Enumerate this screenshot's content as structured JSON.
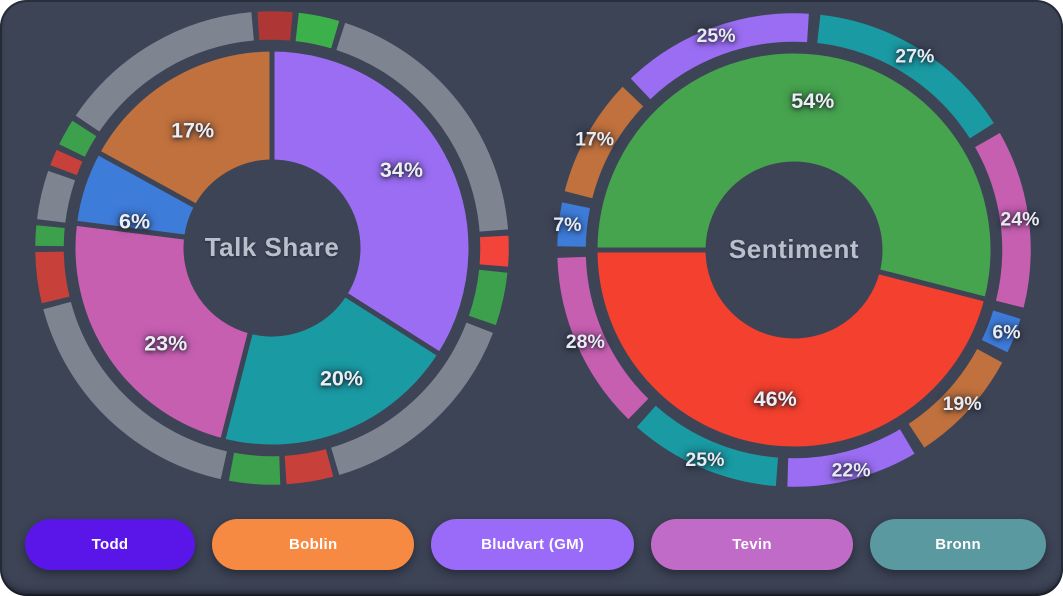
{
  "card": {
    "background": "#3d4456"
  },
  "colors": {
    "background": "#3d4456",
    "purple": "#9b6df3",
    "teal": "#1a9aa3",
    "magenta": "#c75fb1",
    "blue": "#3e7cd9",
    "orange": "#c0713d",
    "green": "#46a34e",
    "red": "#f4402e",
    "ring_gray": "#7e8591",
    "ring_green": "#3da04c",
    "ring_green_bright": "#3cb04a",
    "ring_red": "#c8403a",
    "ring_red_bright": "#f2443a",
    "ring_red_dark": "#ae3736",
    "label": "#eceef3",
    "title": "#b9c0cb"
  },
  "chart_data": [
    {
      "type": "pie",
      "title": "Talk Share",
      "unit": "%",
      "start_angle_deg": 0,
      "slices": [
        {
          "label": "34%",
          "value": 34,
          "color": "purple",
          "label_deg": 59,
          "label_r": 151
        },
        {
          "label": "20%",
          "value": 20,
          "color": "teal",
          "label_deg": 152,
          "label_r": 148
        },
        {
          "label": "23%",
          "value": 23,
          "color": "magenta",
          "label_deg": 228,
          "label_r": 143
        },
        {
          "label": "6%",
          "value": 6,
          "color": "blue",
          "label_deg": 281,
          "label_r": 140
        },
        {
          "label": "17%",
          "value": 17,
          "color": "orange",
          "label_deg": 326,
          "label_r": 142
        }
      ],
      "outer_ring": {
        "gap_deg": 0,
        "segments": [
          {
            "color": "ring_gray",
            "start": 18,
            "end": 85.5
          },
          {
            "color": "ring_red_bright",
            "start": 87,
            "end": 94.5
          },
          {
            "color": "ring_green",
            "start": 96,
            "end": 109
          },
          {
            "color": "ring_gray",
            "start": 111,
            "end": 163.5
          },
          {
            "color": "ring_red",
            "start": 165,
            "end": 176.5
          },
          {
            "color": "ring_green",
            "start": 178,
            "end": 190.5
          },
          {
            "color": "ring_gray",
            "start": 192.5,
            "end": 255
          },
          {
            "color": "ring_red",
            "start": 256.5,
            "end": 269
          },
          {
            "color": "ring_green",
            "start": 270.5,
            "end": 275.5
          },
          {
            "color": "ring_gray",
            "start": 277,
            "end": 289
          },
          {
            "color": "ring_red",
            "start": 290.5,
            "end": 294.5
          },
          {
            "color": "ring_green",
            "start": 296,
            "end": 302.5
          },
          {
            "color": "ring_gray",
            "start": 304,
            "end": 355
          },
          {
            "color": "ring_red_dark",
            "start": 356.5,
            "end": 365
          },
          {
            "color": "ring_green_bright",
            "start": 366.5,
            "end": 376.5
          }
        ]
      }
    },
    {
      "type": "pie",
      "title": "Sentiment",
      "unit": "%",
      "start_angle_deg": 270,
      "slices": [
        {
          "label": "54%",
          "value": 54,
          "color": "green"
        },
        {
          "label": "46%",
          "value": 46,
          "color": "red"
        }
      ],
      "outer_ring": {
        "gap_deg": 2.8,
        "segments": [
          {
            "label": "27%",
            "value": 27,
            "color": "teal",
            "start": 5,
            "end": 59
          },
          {
            "label": "24%",
            "value": 24,
            "color": "magenta",
            "start": 59,
            "end": 105.5
          },
          {
            "label": "6%",
            "value": 6,
            "color": "blue",
            "start": 105.5,
            "end": 117
          },
          {
            "label": "19%",
            "value": 19,
            "color": "orange",
            "start": 117,
            "end": 148
          },
          {
            "label": "22%",
            "value": 22,
            "color": "purple",
            "start": 148,
            "end": 183
          },
          {
            "label": "25%",
            "value": 25,
            "color": "teal",
            "start": 183,
            "end": 223
          },
          {
            "label": "28%",
            "value": 28,
            "color": "magenta",
            "start": 223,
            "end": 269.5
          },
          {
            "label": "7%",
            "value": 7,
            "color": "blue",
            "start": 269.5,
            "end": 283
          },
          {
            "label": "17%",
            "value": 17,
            "color": "orange",
            "start": 283,
            "end": 315
          },
          {
            "label": "25%",
            "value": 25,
            "color": "purple",
            "start": 315,
            "end": 365
          }
        ]
      }
    }
  ],
  "legend": {
    "buttons": [
      {
        "label": "Todd",
        "color": "#5a16e8"
      },
      {
        "label": "Boblin",
        "color": "#f78a42"
      },
      {
        "label": "Bludvart (GM)",
        "color": "#9a6af8"
      },
      {
        "label": "Tevin",
        "color": "#bf6bc7"
      },
      {
        "label": "Bronn",
        "color": "#5b99a1"
      }
    ]
  }
}
